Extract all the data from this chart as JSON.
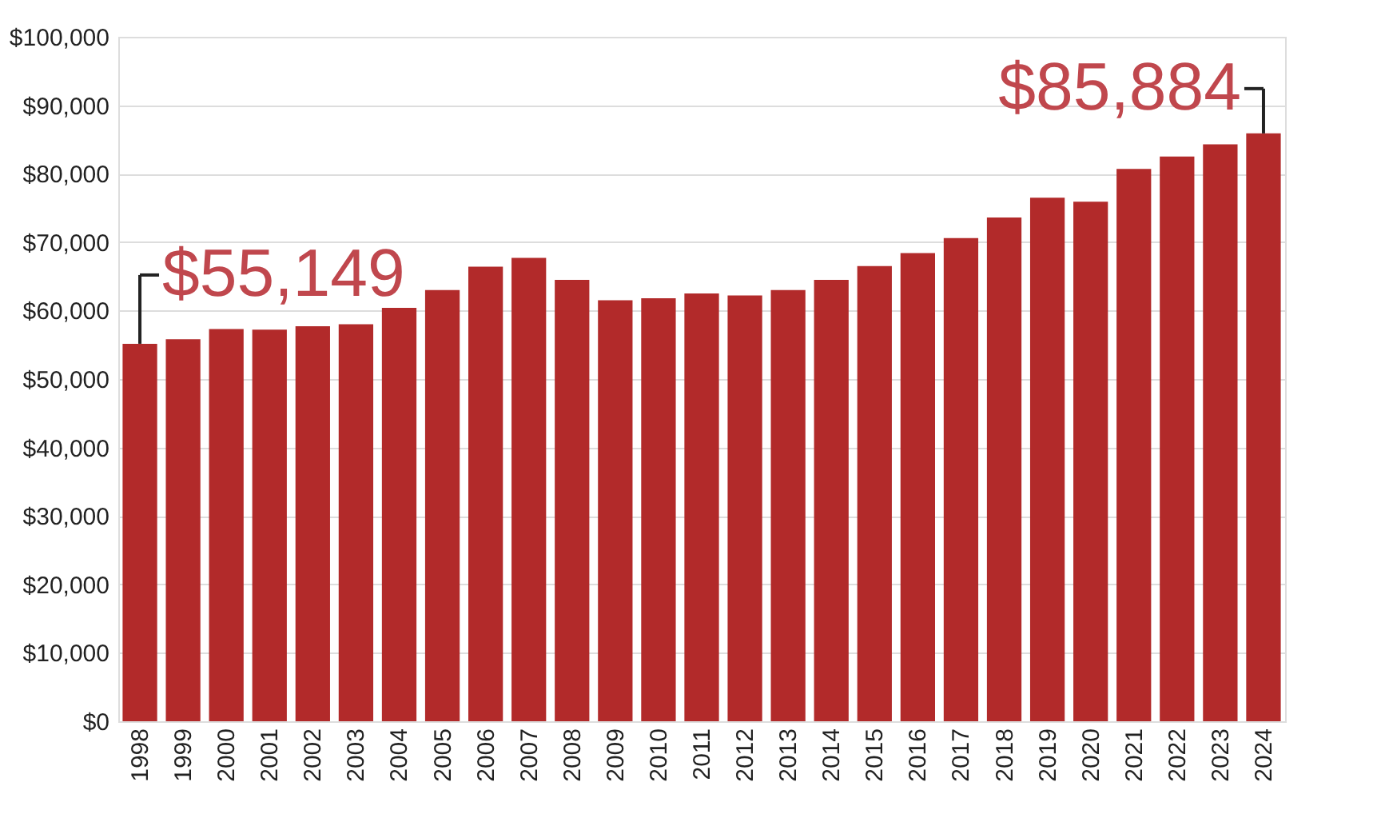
{
  "chart_data": {
    "type": "bar",
    "categories": [
      "1998",
      "1999",
      "2000",
      "2001",
      "2002",
      "2003",
      "2004",
      "2005",
      "2006",
      "2007",
      "2008",
      "2009",
      "2010",
      "2011",
      "2012",
      "2013",
      "2014",
      "2015",
      "2016",
      "2017",
      "2018",
      "2019",
      "2020",
      "2021",
      "2022",
      "2023",
      "2024"
    ],
    "values": [
      55149,
      55800,
      57300,
      57200,
      57700,
      58000,
      60400,
      63000,
      66400,
      67700,
      64500,
      61500,
      61800,
      62500,
      62200,
      63000,
      64500,
      66500,
      68400,
      70600,
      73600,
      76500,
      75900,
      80700,
      82500,
      84300,
      85884
    ],
    "color": "#b22a2a",
    "ylim": [
      0,
      100000
    ],
    "yticks": [
      {
        "value": 0,
        "label": "$0"
      },
      {
        "value": 10000,
        "label": "$10,000"
      },
      {
        "value": 20000,
        "label": "$20,000"
      },
      {
        "value": 30000,
        "label": "$30,000"
      },
      {
        "value": 40000,
        "label": "$40,000"
      },
      {
        "value": 50000,
        "label": "$50,000"
      },
      {
        "value": 60000,
        "label": "$60,000"
      },
      {
        "value": 70000,
        "label": "$70,000"
      },
      {
        "value": 80000,
        "label": "$80,000"
      },
      {
        "value": 90000,
        "label": "$90,000"
      },
      {
        "value": 100000,
        "label": "$100,000"
      }
    ],
    "grid": "y",
    "annotations": [
      {
        "text": "$55,149",
        "x": "1998",
        "y": 55149
      },
      {
        "text": "$85,884",
        "x": "2024",
        "y": 85884
      }
    ]
  }
}
